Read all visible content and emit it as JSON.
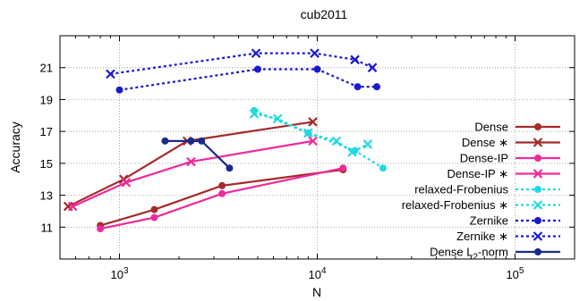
{
  "chart_data": {
    "type": "line",
    "title": "cub2011",
    "xlabel": "N",
    "ylabel": "Accuracy",
    "xscale": "log",
    "xlim": [
      500,
      200000
    ],
    "ylim": [
      9,
      23
    ],
    "x_ticks": [
      {
        "value": 1000,
        "base": "10",
        "exp": "3"
      },
      {
        "value": 10000,
        "base": "10",
        "exp": "4"
      },
      {
        "value": 100000,
        "base": "10",
        "exp": "5"
      }
    ],
    "y_ticks": [
      11,
      13,
      15,
      17,
      19,
      21
    ],
    "grid": true,
    "legend_position": "right",
    "series": [
      {
        "name": "Dense",
        "legend_label": "Dense",
        "color": "#a52a2a",
        "marker": "circle",
        "dash": "solid",
        "x": [
          800,
          1500,
          3300,
          13500
        ],
        "y": [
          11.1,
          12.1,
          13.6,
          14.6
        ]
      },
      {
        "name": "Dense *",
        "legend_label": "Dense ∗",
        "color": "#a52a2a",
        "marker": "x",
        "dash": "solid",
        "x": [
          550,
          1050,
          2200,
          9500
        ],
        "y": [
          12.3,
          14.0,
          16.4,
          17.6
        ]
      },
      {
        "name": "Dense-IP",
        "legend_label": "Dense-IP",
        "color": "#ee2a9a",
        "marker": "circle",
        "dash": "solid",
        "x": [
          800,
          1500,
          3300,
          13500
        ],
        "y": [
          10.9,
          11.6,
          13.1,
          14.7
        ]
      },
      {
        "name": "Dense-IP *",
        "legend_label": "Dense-IP ∗",
        "color": "#ee2a9a",
        "marker": "x",
        "dash": "solid",
        "x": [
          580,
          1080,
          2300,
          9500
        ],
        "y": [
          12.3,
          13.8,
          15.1,
          16.4
        ]
      },
      {
        "name": "relaxed-Frobenius",
        "legend_label": "relaxed-Frobenius",
        "color": "#22d8e0",
        "marker": "circle",
        "dash": "dotted",
        "x": [
          4800,
          9000,
          15500,
          21500
        ],
        "y": [
          18.3,
          16.9,
          15.8,
          14.7
        ]
      },
      {
        "name": "relaxed-Frobenius *",
        "legend_label": "relaxed-Frobenius ∗",
        "color": "#22d8e0",
        "marker": "x",
        "dash": "dotted",
        "x": [
          4800,
          6300,
          9000,
          12500,
          15000,
          18000
        ],
        "y": [
          18.1,
          17.8,
          16.9,
          16.4,
          15.7,
          16.2
        ]
      },
      {
        "name": "Zernike",
        "legend_label": "Zernike",
        "color": "#1a1acc",
        "marker": "circle",
        "dash": "dotted",
        "x": [
          1000,
          5000,
          10000,
          16000,
          20000
        ],
        "y": [
          19.6,
          20.9,
          20.9,
          19.8,
          19.8
        ]
      },
      {
        "name": "Zernike *",
        "legend_label": "Zernike ∗",
        "color": "#1a1acc",
        "marker": "x",
        "dash": "dotted",
        "x": [
          900,
          4900,
          9700,
          15500,
          19000
        ],
        "y": [
          20.6,
          21.9,
          21.9,
          21.5,
          21.0
        ]
      },
      {
        "name": "Dense L2-norm",
        "legend_label": "Dense L",
        "legend_sub": "2",
        "legend_suffix": "-norm",
        "color": "#1a2a8a",
        "marker": "circle",
        "dash": "solid",
        "x": [
          1700,
          2300,
          2600,
          3600
        ],
        "y": [
          16.4,
          16.4,
          16.4,
          14.7
        ]
      }
    ]
  }
}
